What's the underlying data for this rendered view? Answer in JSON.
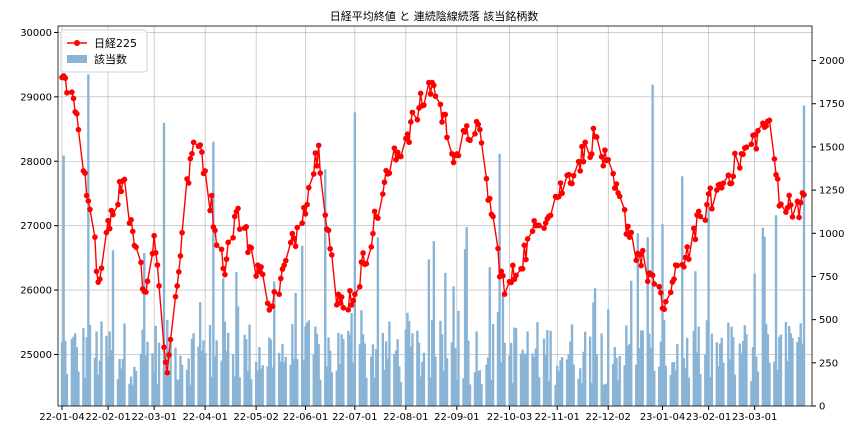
{
  "chart_data": {
    "type": "line+bar",
    "title": "日経平均終値 と 連続陰線続落 該当銘柄数",
    "xlabel": "",
    "ylabel_left": "",
    "ylabel_right": "",
    "x_start": "2022-01-04",
    "x_end": "2023-03-31",
    "x_ticks": [
      "22-01-04",
      "22-02-01",
      "22-03-01",
      "22-04-01",
      "22-05-02",
      "22-06-01",
      "22-07-01",
      "22-08-01",
      "22-09-01",
      "22-10-03",
      "22-11-01",
      "22-12-02",
      "23-01-04",
      "23-02-01",
      "23-03-01"
    ],
    "ylim_left": [
      24200,
      30100
    ],
    "yticks_left": [
      25000,
      26000,
      27000,
      28000,
      29000,
      30000
    ],
    "ylim_right": [
      0,
      2200
    ],
    "yticks_right": [
      0,
      250,
      500,
      750,
      1000,
      1250,
      1500,
      1750,
      2000
    ],
    "grid": true,
    "legend_position": "top-left",
    "colors": {
      "line": "#ff0000",
      "bar": "#8ab4d6",
      "grid": "#b0b0b0"
    },
    "series": [
      {
        "name": "日経225",
        "axis": "left",
        "kind": "line",
        "monthly_anchors": [
          {
            "date": "2022-01-04",
            "value": 29301
          },
          {
            "date": "2022-01-12",
            "value": 28765
          },
          {
            "date": "2022-01-19",
            "value": 27467
          },
          {
            "date": "2022-01-27",
            "value": 26170
          },
          {
            "date": "2022-02-01",
            "value": 27078
          },
          {
            "date": "2022-02-10",
            "value": 27696
          },
          {
            "date": "2022-02-24",
            "value": 25970
          },
          {
            "date": "2022-03-01",
            "value": 26844
          },
          {
            "date": "2022-03-09",
            "value": 24717
          },
          {
            "date": "2022-03-23",
            "value": 28040
          },
          {
            "date": "2022-03-29",
            "value": 28252
          },
          {
            "date": "2022-04-12",
            "value": 26335
          },
          {
            "date": "2022-04-20",
            "value": 27217
          },
          {
            "date": "2022-05-12",
            "value": 25748
          },
          {
            "date": "2022-05-31",
            "value": 27279
          },
          {
            "date": "2022-06-09",
            "value": 28246
          },
          {
            "date": "2022-06-20",
            "value": 25771
          },
          {
            "date": "2022-07-01",
            "value": 25935
          },
          {
            "date": "2022-07-21",
            "value": 27803
          },
          {
            "date": "2022-08-17",
            "value": 29222
          },
          {
            "date": "2022-08-31",
            "value": 28091
          },
          {
            "date": "2022-09-13",
            "value": 28614
          },
          {
            "date": "2022-09-30",
            "value": 25937
          },
          {
            "date": "2022-10-20",
            "value": 27006
          },
          {
            "date": "2022-11-24",
            "value": 28383
          },
          {
            "date": "2022-12-20",
            "value": 26568
          },
          {
            "date": "2022-12-30",
            "value": 26095
          },
          {
            "date": "2023-01-04",
            "value": 25717
          },
          {
            "date": "2023-01-31",
            "value": 27327
          },
          {
            "date": "2023-03-09",
            "value": 28623
          },
          {
            "date": "2023-03-17",
            "value": 27334
          }
        ]
      },
      {
        "name": "該当数",
        "axis": "right",
        "kind": "bar",
        "note": "daily counts of stocks",
        "peaks": [
          {
            "date": "2022-01-05",
            "value": 1450
          },
          {
            "date": "2022-01-20",
            "value": 1920
          },
          {
            "date": "2022-03-07",
            "value": 1640
          },
          {
            "date": "2022-04-06",
            "value": 1530
          },
          {
            "date": "2022-06-13",
            "value": 1370
          },
          {
            "date": "2022-07-01",
            "value": 1700
          },
          {
            "date": "2022-09-27",
            "value": 1460
          },
          {
            "date": "2022-12-20",
            "value": 1000
          },
          {
            "date": "2022-12-29",
            "value": 1860
          },
          {
            "date": "2023-01-16",
            "value": 1330
          },
          {
            "date": "2023-03-31",
            "value": 1740
          }
        ]
      }
    ]
  }
}
